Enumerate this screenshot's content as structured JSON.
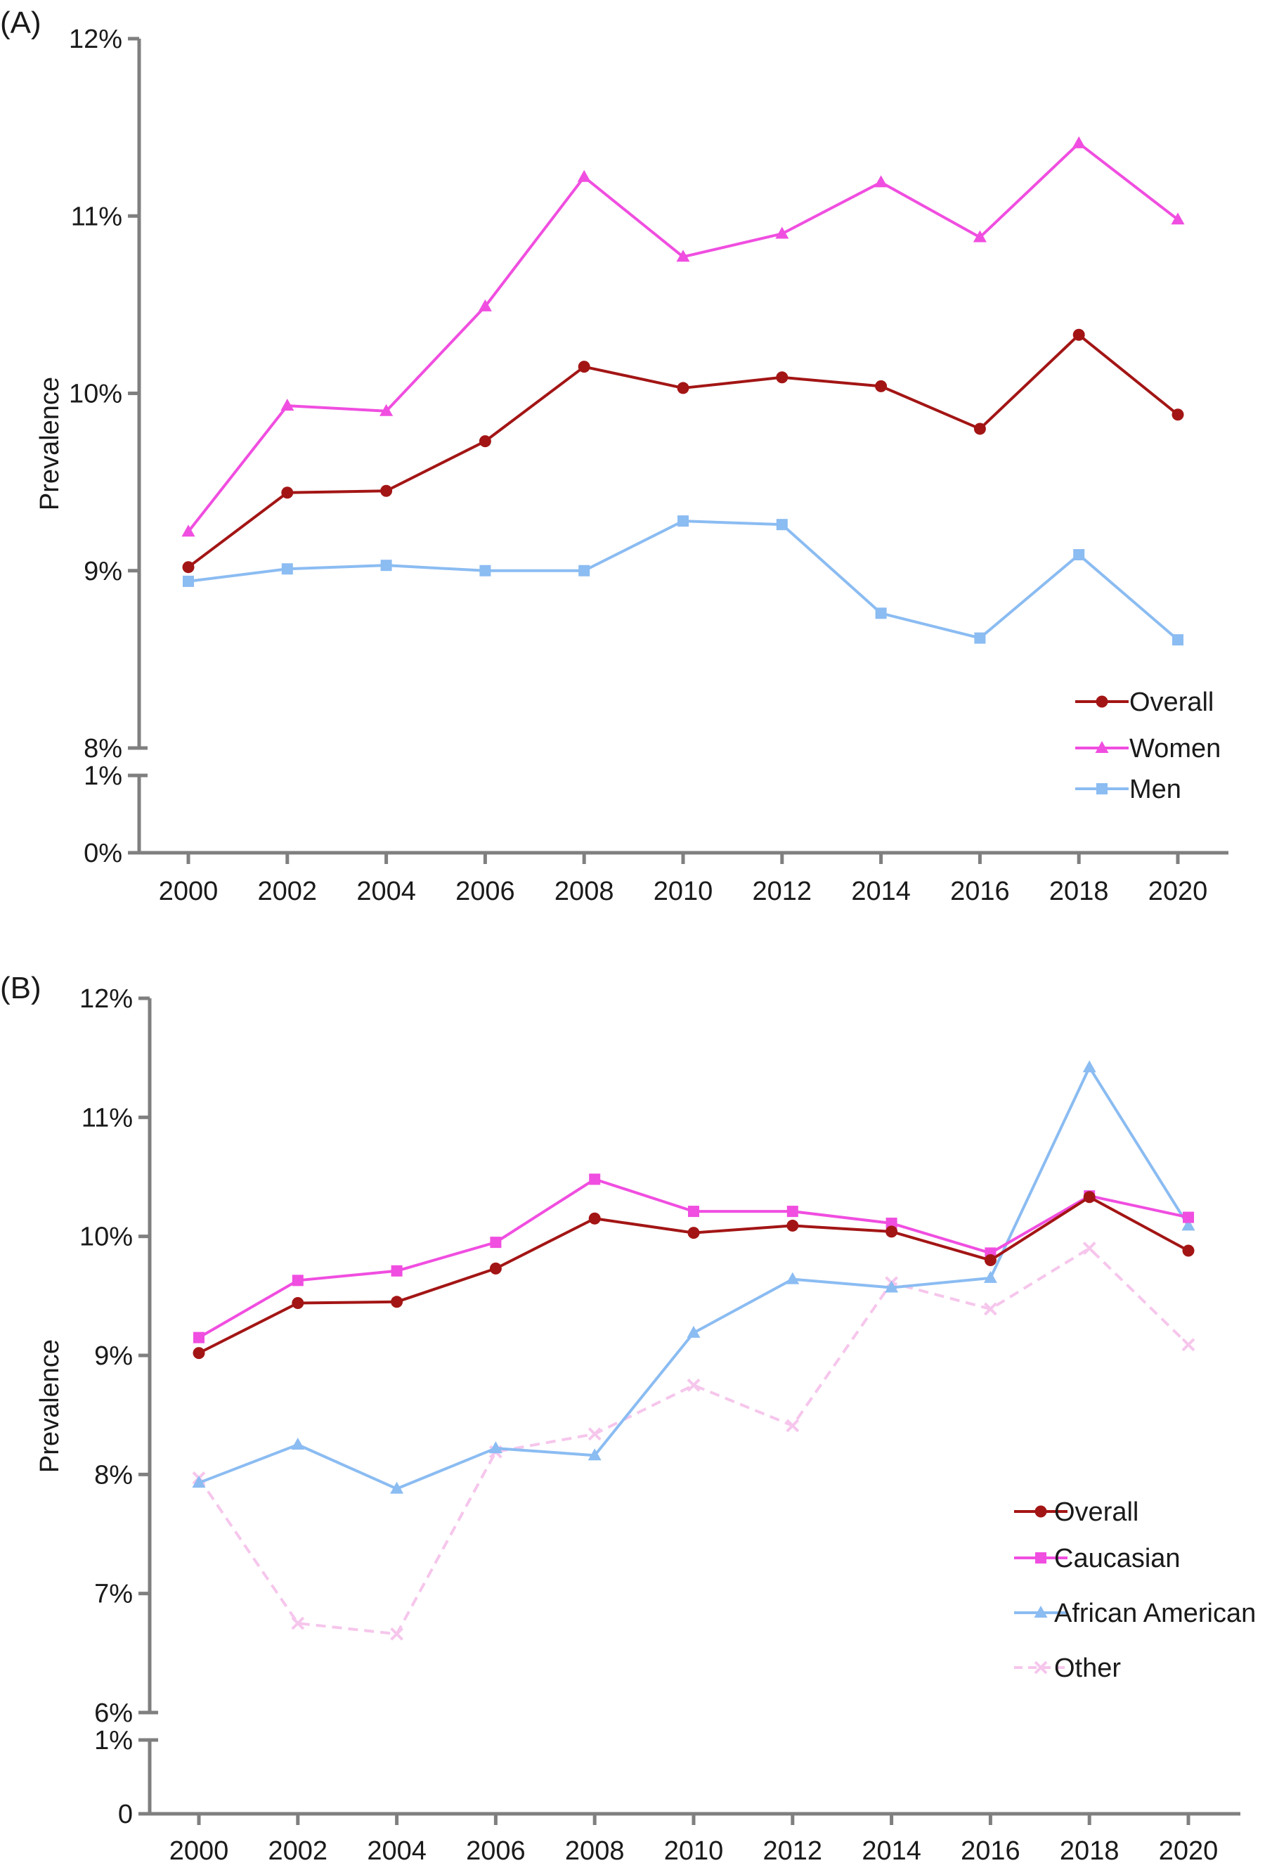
{
  "chart_data": [
    {
      "type": "line",
      "panel_label": "(A)",
      "x": [
        2000,
        2002,
        2004,
        2006,
        2008,
        2010,
        2012,
        2014,
        2016,
        2018,
        2020
      ],
      "xlabel": "",
      "ylabel": "Prevalence",
      "y_axis_broken": true,
      "ylim_upper": [
        8,
        12
      ],
      "ylim_lower": [
        0,
        1
      ],
      "yticks_upper": [
        "8%",
        "9%",
        "10%",
        "11%",
        "12%"
      ],
      "yticks_lower": [
        "0%",
        "1%"
      ],
      "legend_placement": "bottom-right",
      "series": [
        {
          "name": "Overall",
          "color": "#a31515",
          "marker": "circle",
          "dashed": false,
          "values": [
            9.02,
            9.44,
            9.45,
            9.73,
            10.15,
            10.03,
            10.09,
            10.04,
            9.8,
            10.33,
            9.88
          ]
        },
        {
          "name": "Women",
          "color": "#f04ee0",
          "marker": "triangle",
          "dashed": false,
          "values": [
            9.22,
            9.93,
            9.9,
            10.49,
            11.22,
            10.77,
            10.9,
            11.19,
            10.88,
            11.41,
            10.98
          ]
        },
        {
          "name": "Men",
          "color": "#8bbcf2",
          "marker": "square",
          "dashed": false,
          "values": [
            8.94,
            9.01,
            9.03,
            9.0,
            9.0,
            9.28,
            9.26,
            8.76,
            8.62,
            9.09,
            8.61
          ]
        }
      ]
    },
    {
      "type": "line",
      "panel_label": "(B)",
      "x": [
        2000,
        2002,
        2004,
        2006,
        2008,
        2010,
        2012,
        2014,
        2016,
        2018,
        2020
      ],
      "xlabel": "",
      "ylabel": "Prevalence",
      "y_axis_broken": true,
      "ylim_upper": [
        6,
        12
      ],
      "ylim_lower": [
        0,
        1
      ],
      "yticks_upper": [
        "6%",
        "7%",
        "8%",
        "9%",
        "10%",
        "11%",
        "12%"
      ],
      "yticks_lower": [
        "0",
        "1%"
      ],
      "legend_placement": "bottom-right",
      "series": [
        {
          "name": "Overall",
          "color": "#a31515",
          "marker": "circle",
          "dashed": false,
          "values": [
            9.02,
            9.44,
            9.45,
            9.73,
            10.15,
            10.03,
            10.09,
            10.04,
            9.8,
            10.33,
            9.88
          ]
        },
        {
          "name": "Caucasian",
          "color": "#f04ee0",
          "marker": "square",
          "dashed": false,
          "values": [
            9.15,
            9.63,
            9.71,
            9.95,
            10.48,
            10.21,
            10.21,
            10.11,
            9.86,
            10.34,
            10.16
          ]
        },
        {
          "name": "African American",
          "color": "#8bbcf2",
          "marker": "triangle",
          "dashed": false,
          "values": [
            7.93,
            8.25,
            7.88,
            8.22,
            8.16,
            9.19,
            9.64,
            9.57,
            9.65,
            11.42,
            10.09
          ]
        },
        {
          "name": "Other",
          "color": "#f6c6ec",
          "marker": "x",
          "dashed": true,
          "values": [
            7.97,
            6.75,
            6.66,
            8.19,
            8.34,
            8.75,
            8.41,
            9.61,
            9.39,
            9.9,
            9.09
          ]
        }
      ]
    }
  ]
}
